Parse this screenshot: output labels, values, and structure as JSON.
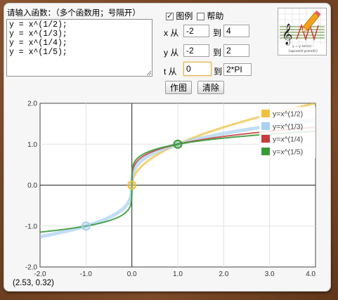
{
  "function_input": {
    "prompt": "请输入函数：（多个函数用；号隔开）",
    "text": "y = x^(1/2);\ny = x^(1/3);\ny = x^(1/4);\ny = x^(1/5);"
  },
  "options": {
    "legend_label": "图例",
    "legend_checked": true,
    "help_label": "帮助",
    "help_checked": false
  },
  "ranges": {
    "x": {
      "label": "x 从",
      "from": "-2",
      "to_label": "到",
      "to": "4"
    },
    "y": {
      "label": "y 从",
      "from": "-2",
      "to_label": "到",
      "to": "2"
    },
    "t": {
      "label": "t 从",
      "from": "0",
      "to_label": "到",
      "to": "2*PI"
    }
  },
  "buttons": {
    "plot": "作图",
    "clear": "清除"
  },
  "logo": {
    "caption1": "y = y sec(x) :",
    "caption2": "{xpcos(t):ycsin(t)}"
  },
  "status": {
    "coordinate": "(2.53, 0.32)"
  },
  "colors": {
    "series1": "#f0c040",
    "series2": "#a8d0f0",
    "series3": "#c83c3c",
    "series4": "#3a9a3a"
  },
  "chart_data": {
    "type": "line",
    "title": "",
    "xlabel": "",
    "ylabel": "",
    "xlim": [
      -2,
      4
    ],
    "ylim": [
      -2,
      2
    ],
    "grid": true,
    "legend_position": "top-right",
    "x_ticks": [
      "-2.0",
      "-1.0",
      "0.0",
      "1.0",
      "2.0",
      "3.0",
      "4.0"
    ],
    "y_ticks": [
      "2.0",
      "1.0",
      "0.0",
      "-1.0",
      "-2.0"
    ],
    "series": [
      {
        "name": "y=x^(1/2)",
        "color": "#f0c040",
        "exponent": 0.5,
        "odd_root": false,
        "x": [
          0,
          0.25,
          0.5,
          1,
          1.5,
          2,
          2.5,
          3,
          3.5,
          4
        ],
        "y": [
          0,
          0.5,
          0.71,
          1,
          1.22,
          1.41,
          1.58,
          1.73,
          1.87,
          2.0
        ]
      },
      {
        "name": "y=x^(1/3)",
        "color": "#a8d0f0",
        "exponent": 0.3333,
        "odd_root": true,
        "x": [
          -2,
          -1,
          -0.5,
          0,
          0.5,
          1,
          2,
          3,
          4
        ],
        "y": [
          -1.26,
          -1,
          -0.79,
          0,
          0.79,
          1,
          1.26,
          1.44,
          1.59
        ]
      },
      {
        "name": "y=x^(1/4)",
        "color": "#c83c3c",
        "exponent": 0.25,
        "odd_root": false,
        "x": [
          0,
          0.5,
          1,
          2,
          3,
          4
        ],
        "y": [
          0,
          0.84,
          1,
          1.19,
          1.32,
          1.41
        ]
      },
      {
        "name": "y=x^(1/5)",
        "color": "#3a9a3a",
        "exponent": 0.2,
        "odd_root": true,
        "x": [
          -2,
          -1,
          -0.5,
          0,
          0.5,
          1,
          2,
          3,
          4
        ],
        "y": [
          -1.15,
          -1,
          -0.87,
          0,
          0.87,
          1,
          1.15,
          1.25,
          1.32
        ]
      }
    ],
    "highlight_points": [
      {
        "x": -1,
        "y": -1,
        "color": "#a8d0f0"
      },
      {
        "x": 0,
        "y": 0,
        "color": "#f0c040"
      },
      {
        "x": 1,
        "y": 1,
        "color": "#3a9a3a"
      }
    ]
  }
}
